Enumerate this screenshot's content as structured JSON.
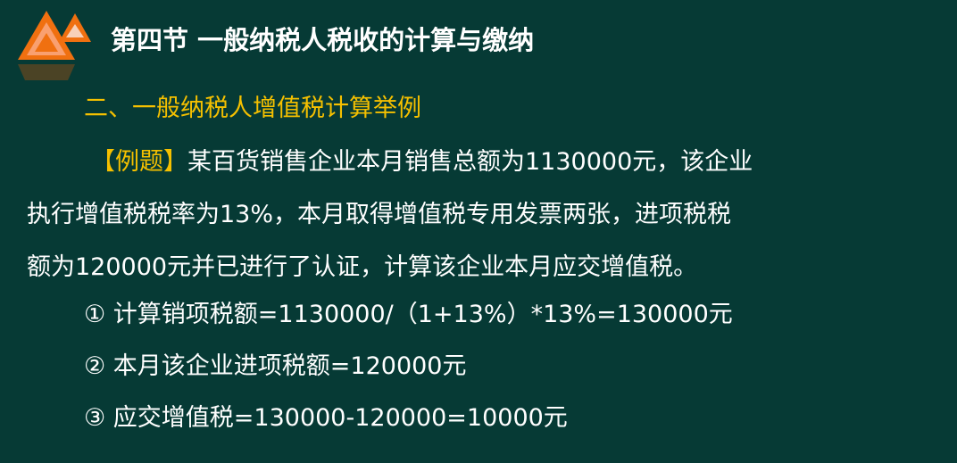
{
  "slide": {
    "title": "第四节 一般纳税人税收的计算与缴纳",
    "subtitle": "二、一般纳税人增值税计算举例",
    "example_label": "【例题】",
    "example_text_line1": "某百货销售企业本月销售总额为1130000元，该企业",
    "example_text_line2": "执行增值税税率为13%，本月取得增值税专用发票两张，进项税税",
    "example_text_line3": "额为120000元并已进行了认证，计算该企业本月应交增值税。",
    "steps": [
      "①  计算销项税额=1130000/（1+13%）*13%=130000元",
      "②  本月该企业进项税额=120000元",
      "③  应交增值税=130000-120000=10000元"
    ]
  },
  "colors": {
    "background": "#063a35",
    "accent": "#f5c000",
    "logo": "#f07010"
  },
  "logo_icon": "orange-triangles-icon"
}
